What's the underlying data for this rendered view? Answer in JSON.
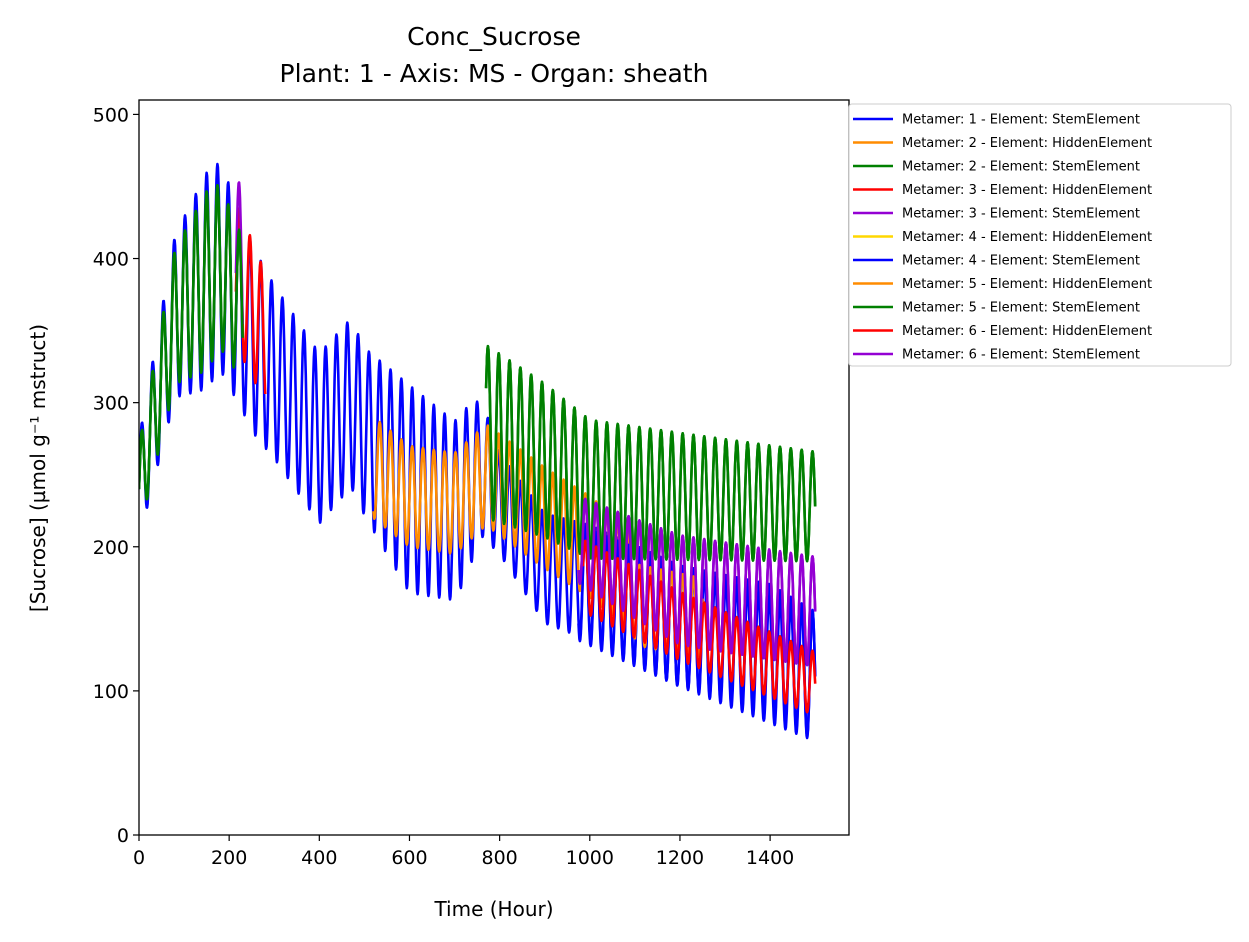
{
  "chart_data": {
    "type": "line",
    "title": "Conc_Sucrose",
    "subtitle": "Plant: 1 - Axis: MS - Organ: sheath",
    "xlabel": "Time (Hour)",
    "ylabel": "[Sucrose] (µmol g⁻¹ mstruct)",
    "xlim": [
      0,
      1575
    ],
    "ylim": [
      0,
      510
    ],
    "x_ticks": [
      0,
      200,
      400,
      600,
      800,
      1000,
      1200,
      1400
    ],
    "y_ticks": [
      0,
      100,
      200,
      300,
      400,
      500
    ],
    "x_tick_labels": [
      "0",
      "200",
      "400",
      "600",
      "800",
      "1000",
      "1200",
      "1400"
    ],
    "y_tick_labels": [
      "0",
      "100",
      "200",
      "300",
      "400",
      "500"
    ],
    "legend_position": "outside-right-top",
    "grid": false,
    "period_hours": 24,
    "series": [
      {
        "name": "Metamer: 1 - Element: StemElement",
        "color": "#0000ff",
        "x_start": 0,
        "x_end": 1500,
        "base": [
          [
            0,
            240
          ],
          [
            80,
            360
          ],
          [
            180,
            395
          ],
          [
            260,
            340
          ],
          [
            400,
            275
          ],
          [
            470,
            300
          ],
          [
            500,
            280
          ],
          [
            600,
            240
          ],
          [
            700,
            225
          ],
          [
            760,
            255
          ],
          [
            800,
            230
          ],
          [
            900,
            185
          ],
          [
            1000,
            175
          ],
          [
            1200,
            145
          ],
          [
            1400,
            130
          ],
          [
            1500,
            110
          ]
        ],
        "amp": [
          [
            0,
            35
          ],
          [
            150,
            75
          ],
          [
            300,
            60
          ],
          [
            500,
            58
          ],
          [
            600,
            72
          ],
          [
            720,
            60
          ],
          [
            800,
            35
          ],
          [
            900,
            38
          ],
          [
            1000,
            40
          ],
          [
            1500,
            45
          ]
        ]
      },
      {
        "name": "Metamer: 2 - Element: HiddenElement",
        "color": "#ff8c00",
        "x_start": 520,
        "x_end": 1100,
        "base": [
          [
            520,
            255
          ],
          [
            600,
            235
          ],
          [
            700,
            230
          ],
          [
            770,
            250
          ],
          [
            900,
            220
          ],
          [
            1000,
            200
          ],
          [
            1100,
            175
          ]
        ],
        "amp": [
          [
            520,
            35
          ],
          [
            1100,
            35
          ]
        ]
      },
      {
        "name": "Metamer: 2 - Element: StemElement",
        "color": "#008000",
        "x_start": 0,
        "x_end": 1500,
        "base": [
          [
            0,
            240
          ],
          [
            80,
            360
          ],
          [
            180,
            395
          ],
          [
            220,
            370
          ]
        ],
        "amp": [
          [
            0,
            30
          ],
          [
            150,
            62
          ],
          [
            220,
            50
          ]
        ],
        "cont_x_start": 770,
        "cont_base": [
          [
            770,
            280
          ],
          [
            900,
            260
          ],
          [
            1000,
            240
          ],
          [
            1200,
            235
          ],
          [
            1500,
            228
          ]
        ],
        "cont_amp": [
          [
            770,
            60
          ],
          [
            1000,
            48
          ],
          [
            1500,
            38
          ]
        ]
      },
      {
        "name": "Metamer: 3 - Element: HiddenElement",
        "color": "#ff0000",
        "x_start": 215,
        "x_end": 280,
        "base": [
          [
            215,
            390
          ],
          [
            280,
            345
          ]
        ],
        "amp": [
          [
            215,
            50
          ],
          [
            280,
            45
          ]
        ]
      },
      {
        "name": "Metamer: 3 - Element: StemElement",
        "color": "#9400d3",
        "x_start": 215,
        "x_end": 1500,
        "base": [
          [
            215,
            405
          ],
          [
            260,
            340
          ],
          [
            400,
            275
          ],
          [
            470,
            295
          ],
          [
            520,
            265
          ],
          [
            540,
            255
          ]
        ],
        "amp": [
          [
            215,
            58
          ],
          [
            540,
            52
          ]
        ],
        "cont_x_start": 975,
        "cont_base": [
          [
            975,
            205
          ],
          [
            1100,
            185
          ],
          [
            1200,
            170
          ],
          [
            1300,
            165
          ],
          [
            1500,
            155
          ]
        ],
        "cont_amp": [
          [
            975,
            30
          ],
          [
            1200,
            38
          ],
          [
            1500,
            38
          ]
        ]
      },
      {
        "name": "Metamer: 4 - Element: HiddenElement",
        "color": "#ffd700",
        "x_start": 0,
        "x_end": 0,
        "base": [
          [
            0,
            0
          ]
        ],
        "amp": [
          [
            0,
            0
          ]
        ]
      },
      {
        "name": "Metamer: 4 - Element: StemElement",
        "color": "#0000ff",
        "x_start": 975,
        "x_end": 1500,
        "base": [
          [
            975,
            175
          ],
          [
            1200,
            145
          ],
          [
            1500,
            110
          ]
        ],
        "amp": [
          [
            975,
            40
          ],
          [
            1500,
            45
          ]
        ]
      },
      {
        "name": "Metamer: 5 - Element: HiddenElement",
        "color": "#ff8c00",
        "x_start": 1100,
        "x_end": 1250,
        "base": [
          [
            1100,
            160
          ],
          [
            1250,
            150
          ]
        ],
        "amp": [
          [
            1100,
            28
          ],
          [
            1250,
            28
          ]
        ]
      },
      {
        "name": "Metamer: 5 - Element: StemElement",
        "color": "#008000",
        "x_start": 0,
        "x_end": 1500,
        "base": [
          [
            0,
            240
          ],
          [
            80,
            360
          ],
          [
            180,
            395
          ],
          [
            220,
            370
          ]
        ],
        "amp": [
          [
            0,
            30
          ],
          [
            150,
            62
          ],
          [
            220,
            50
          ]
        ],
        "cont_x_start": 770,
        "cont_base": [
          [
            770,
            280
          ],
          [
            900,
            260
          ],
          [
            1000,
            240
          ],
          [
            1200,
            235
          ],
          [
            1500,
            228
          ]
        ],
        "cont_amp": [
          [
            770,
            60
          ],
          [
            1000,
            48
          ],
          [
            1500,
            38
          ]
        ]
      },
      {
        "name": "Metamer: 6 - Element: HiddenElement",
        "color": "#ff0000",
        "x_start": 985,
        "x_end": 1500,
        "base": [
          [
            985,
            180
          ],
          [
            1200,
            145
          ],
          [
            1500,
            105
          ]
        ],
        "amp": [
          [
            985,
            25
          ],
          [
            1500,
            22
          ]
        ]
      },
      {
        "name": "Metamer: 6 - Element: StemElement",
        "color": "#9400d3",
        "x_start": 975,
        "x_end": 1500,
        "base": [
          [
            975,
            205
          ],
          [
            1100,
            185
          ],
          [
            1200,
            170
          ],
          [
            1300,
            165
          ],
          [
            1500,
            155
          ]
        ],
        "amp": [
          [
            975,
            30
          ],
          [
            1200,
            38
          ],
          [
            1500,
            38
          ]
        ]
      }
    ]
  }
}
